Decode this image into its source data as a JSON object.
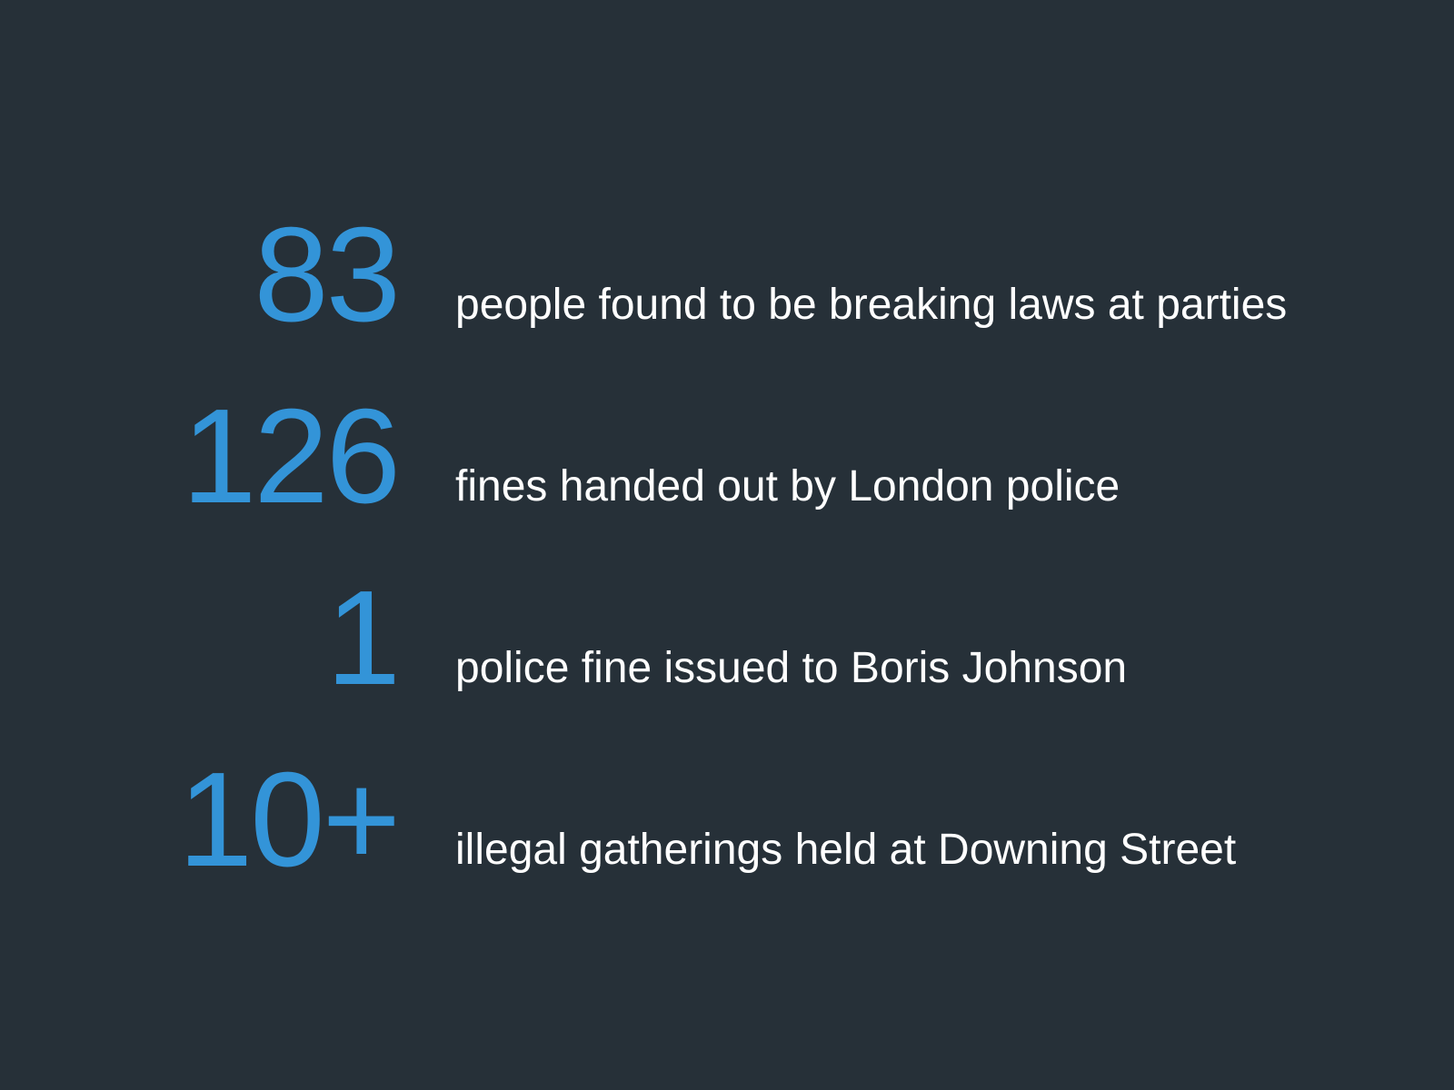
{
  "colors": {
    "background": "#263038",
    "accent": "#3394d8",
    "text": "#ffffff"
  },
  "stats": [
    {
      "number": "83",
      "label": "people found to be breaking laws at parties"
    },
    {
      "number": "126",
      "label": "fines handed out by London police"
    },
    {
      "number": "1",
      "label": "police fine issued to Boris Johnson"
    },
    {
      "number": "10+",
      "label": "illegal gatherings held at Downing Street"
    }
  ]
}
